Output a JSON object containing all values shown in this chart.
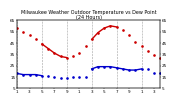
{
  "title": "Milwaukee Weather Outdoor Temperature vs Dew Point\n(24 Hours)",
  "title_fontsize": 3.5,
  "background_color": "#ffffff",
  "x_hours": [
    0,
    1,
    2,
    3,
    4,
    5,
    6,
    7,
    8,
    9,
    10,
    11,
    12,
    13,
    14,
    15,
    16,
    17,
    18,
    19,
    20,
    21,
    22,
    23
  ],
  "temp": [
    58,
    55,
    52,
    48,
    44,
    40,
    36,
    33,
    32,
    33,
    36,
    42,
    48,
    54,
    58,
    60,
    59,
    56,
    52,
    46,
    42,
    38,
    34,
    32
  ],
  "dew": [
    18,
    17,
    17,
    17,
    16,
    16,
    15,
    14,
    14,
    15,
    15,
    15,
    22,
    24,
    24,
    24,
    23,
    22,
    21,
    21,
    22,
    22,
    18,
    18
  ],
  "temp_color": "#cc0000",
  "dew_color": "#0000cc",
  "ylim_min": 5,
  "ylim_max": 65,
  "grid_color": "#888888",
  "ytick_labels_left": [
    "5",
    "15",
    "25",
    "35",
    "45",
    "55",
    "65"
  ],
  "ytick_labels_right": [
    "5",
    "15",
    "25",
    "35",
    "45",
    "55",
    "65"
  ],
  "ytick_values": [
    5,
    15,
    25,
    35,
    45,
    55,
    65
  ],
  "vgrid_x": [
    0,
    4,
    8,
    12,
    16,
    20,
    23
  ],
  "marker_size": 1.8,
  "temp_solid_ranges": [
    [
      4,
      8
    ],
    [
      12,
      16
    ]
  ],
  "dew_solid_ranges": [
    [
      0,
      4
    ],
    [
      12,
      20
    ]
  ],
  "x_tick_step": 2,
  "x_tick_labels": [
    "1",
    "3",
    "5",
    "7",
    "9",
    "1",
    "3",
    "5",
    "7",
    "9",
    "1",
    "3"
  ],
  "tick_fontsize": 3,
  "label_fontsize": 3
}
